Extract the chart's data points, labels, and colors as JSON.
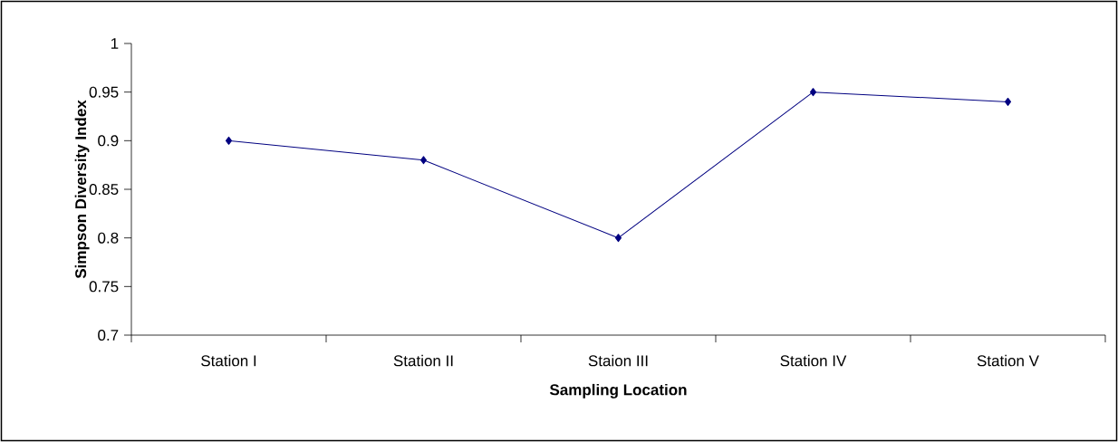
{
  "chart_data": {
    "type": "line",
    "xlabel": "Sampling Location",
    "ylabel": "Simpson Diversity Index",
    "categories": [
      "Station I",
      "Station II",
      "Staion III",
      "Station IV",
      "Station V"
    ],
    "series": [
      {
        "color": "#000080",
        "values": [
          0.9,
          0.88,
          0.8,
          0.95,
          0.94
        ]
      }
    ],
    "ylim": [
      0.7,
      1
    ],
    "yticks": [
      0.7,
      0.75,
      0.8,
      0.85,
      0.9,
      0.95,
      1
    ],
    "marker": "diamond",
    "line_style": "solid",
    "grid": false,
    "legend": false
  }
}
